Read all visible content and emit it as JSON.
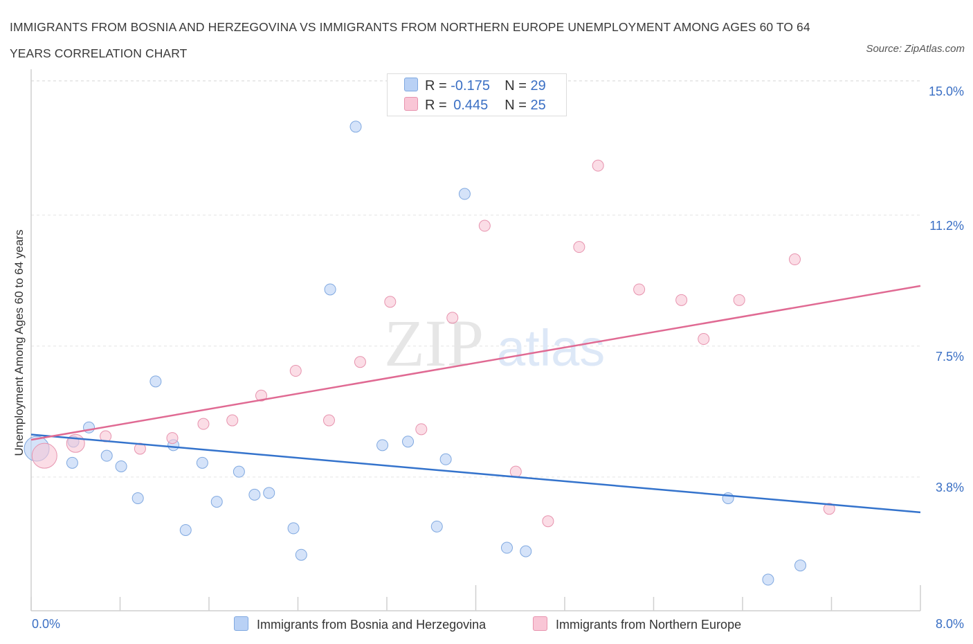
{
  "title": "IMMIGRANTS FROM BOSNIA AND HERZEGOVINA VS IMMIGRANTS FROM NORTHERN EUROPE UNEMPLOYMENT AMONG AGES 60 TO 64 YEARS CORRELATION CHART",
  "source": "Source: ZipAtlas.com",
  "watermark": {
    "zip": "ZIP",
    "atlas": "atlas"
  },
  "legend": {
    "r_label": "R =",
    "n_label": "N =",
    "rows": [
      {
        "r": "-0.175",
        "n": "29",
        "color": "#b9d1f5",
        "border": "#7fa8e0"
      },
      {
        "r": "0.445",
        "n": "25",
        "color": "#f9c6d6",
        "border": "#e793ae"
      }
    ]
  },
  "bottom_legend": [
    {
      "label": "Immigrants from Bosnia and Herzegovina",
      "color": "#b9d1f5",
      "border": "#7fa8e0"
    },
    {
      "label": "Immigrants from Northern Europe",
      "color": "#f9c6d6",
      "border": "#e793ae"
    }
  ],
  "axis": {
    "ylabel": "Unemployment Among Ages 60 to 64 years",
    "x_min_label": "0.0%",
    "x_max_label": "8.0%",
    "y_ticks": [
      {
        "value": 15.0,
        "label": "15.0%"
      },
      {
        "value": 11.2,
        "label": "11.2%"
      },
      {
        "value": 7.5,
        "label": "7.5%"
      },
      {
        "value": 3.8,
        "label": "3.8%"
      }
    ]
  },
  "chart_data": {
    "type": "scatter",
    "xlabel": "",
    "ylabel": "Unemployment Among Ages 60 to 64 years",
    "xlim": [
      0,
      8
    ],
    "ylim": [
      0,
      15
    ],
    "grid": true,
    "series": [
      {
        "name": "Immigrants from Bosnia and Herzegovina",
        "color": "#b9d1f5",
        "stroke": "#7fa8e0",
        "line_color": "#3473cc",
        "trend": {
          "x": [
            0,
            8
          ],
          "y": [
            5.0,
            2.8
          ]
        },
        "points": [
          {
            "x": 0.05,
            "y": 4.6,
            "big": true
          },
          {
            "x": 0.38,
            "y": 4.8
          },
          {
            "x": 0.37,
            "y": 4.2
          },
          {
            "x": 0.52,
            "y": 5.2
          },
          {
            "x": 0.68,
            "y": 4.4
          },
          {
            "x": 0.81,
            "y": 4.1
          },
          {
            "x": 0.96,
            "y": 3.2
          },
          {
            "x": 1.12,
            "y": 6.5
          },
          {
            "x": 1.28,
            "y": 4.7
          },
          {
            "x": 1.39,
            "y": 2.3
          },
          {
            "x": 1.54,
            "y": 4.2
          },
          {
            "x": 1.67,
            "y": 3.1
          },
          {
            "x": 1.87,
            "y": 3.95
          },
          {
            "x": 2.01,
            "y": 3.3
          },
          {
            "x": 2.14,
            "y": 3.35
          },
          {
            "x": 2.36,
            "y": 2.35
          },
          {
            "x": 2.43,
            "y": 1.6
          },
          {
            "x": 2.69,
            "y": 9.1
          },
          {
            "x": 2.92,
            "y": 13.7
          },
          {
            "x": 3.16,
            "y": 4.7
          },
          {
            "x": 3.39,
            "y": 4.8
          },
          {
            "x": 3.65,
            "y": 2.4
          },
          {
            "x": 3.73,
            "y": 4.3
          },
          {
            "x": 3.9,
            "y": 11.8
          },
          {
            "x": 4.28,
            "y": 1.8
          },
          {
            "x": 4.45,
            "y": 1.7
          },
          {
            "x": 6.27,
            "y": 3.2
          },
          {
            "x": 6.63,
            "y": 0.9
          },
          {
            "x": 6.92,
            "y": 1.3
          }
        ]
      },
      {
        "name": "Immigrants from Northern Europe",
        "color": "#f9c6d6",
        "stroke": "#e793ae",
        "line_color": "#e06a93",
        "trend": {
          "x": [
            0,
            8
          ],
          "y": [
            4.85,
            9.2
          ]
        },
        "points": [
          {
            "x": 0.12,
            "y": 4.4,
            "big": true
          },
          {
            "x": 0.4,
            "y": 4.75,
            "medium": true
          },
          {
            "x": 0.67,
            "y": 4.95
          },
          {
            "x": 0.98,
            "y": 4.6
          },
          {
            "x": 1.27,
            "y": 4.9
          },
          {
            "x": 1.55,
            "y": 5.3
          },
          {
            "x": 1.81,
            "y": 5.4
          },
          {
            "x": 2.07,
            "y": 6.1
          },
          {
            "x": 2.38,
            "y": 6.8
          },
          {
            "x": 2.68,
            "y": 5.4
          },
          {
            "x": 2.96,
            "y": 7.05
          },
          {
            "x": 3.23,
            "y": 8.75
          },
          {
            "x": 3.51,
            "y": 5.15
          },
          {
            "x": 3.79,
            "y": 8.3
          },
          {
            "x": 4.08,
            "y": 10.9
          },
          {
            "x": 4.36,
            "y": 3.95
          },
          {
            "x": 4.65,
            "y": 2.55
          },
          {
            "x": 4.93,
            "y": 10.3
          },
          {
            "x": 5.1,
            "y": 12.6
          },
          {
            "x": 5.47,
            "y": 9.1
          },
          {
            "x": 5.85,
            "y": 8.8
          },
          {
            "x": 6.05,
            "y": 7.7
          },
          {
            "x": 6.37,
            "y": 8.8
          },
          {
            "x": 6.87,
            "y": 9.95
          },
          {
            "x": 7.18,
            "y": 2.9
          }
        ]
      }
    ]
  }
}
